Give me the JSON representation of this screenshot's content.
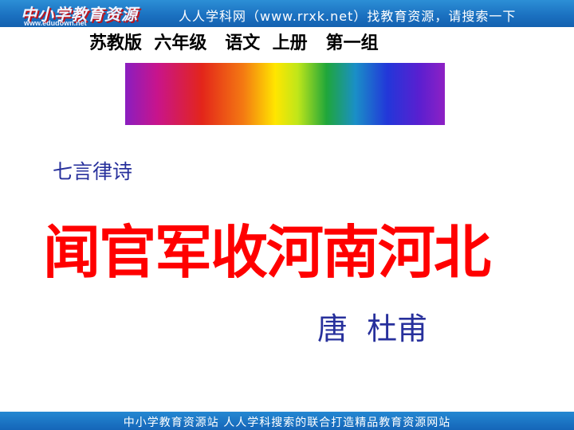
{
  "header": {
    "logo_text": "中小学教育资源",
    "logo_url": "www.edudown.net",
    "right_text": "人人学科网（www.rrxk.net）找教育资源，请搜索一下"
  },
  "subtitle": "苏教版  六年级   语文  上册   第一组",
  "slide": {
    "genre": "七言律诗",
    "poem_title": "闻官军收河南河北",
    "author": "唐  杜甫"
  },
  "footer": {
    "text": "中小学教育资源站  人人学科搜索的联合打造精品教育资源网站"
  },
  "colors": {
    "banner": "#1a6fbf",
    "title_red": "#ff0000",
    "text_blue": "#27309c"
  }
}
